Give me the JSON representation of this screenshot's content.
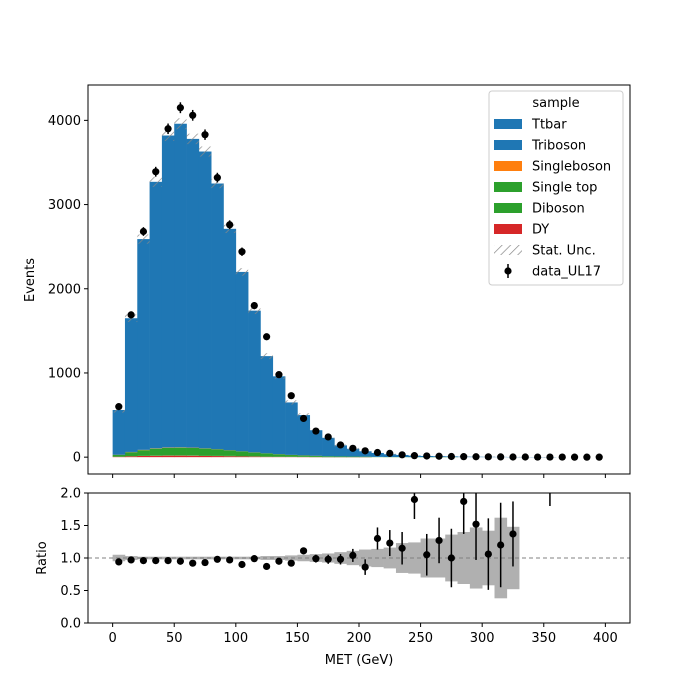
{
  "chart_data": [
    {
      "type": "bar",
      "subtype": "stacked-histogram-with-data-points",
      "xlabel": "",
      "ylabel": "Events",
      "xlim": [
        -20,
        420
      ],
      "ylim": [
        -200,
        4420
      ],
      "bin_edges": [
        0,
        10,
        20,
        30,
        40,
        50,
        60,
        70,
        80,
        90,
        100,
        110,
        120,
        130,
        140,
        150,
        160,
        170,
        180,
        190,
        200,
        210,
        220,
        230,
        240,
        250,
        260,
        270,
        280,
        290,
        300,
        310,
        320,
        330,
        340,
        350,
        360,
        370,
        380,
        390,
        400
      ],
      "x_ticks": [
        0,
        50,
        100,
        150,
        200,
        250,
        300,
        350,
        400
      ],
      "y_ticks": [
        0,
        1000,
        2000,
        3000,
        4000
      ],
      "y_tick_labels": [
        "0",
        "1000",
        "2000",
        "3000",
        "4000"
      ],
      "legend": {
        "title": "sample",
        "placement": "upper-right",
        "entries": [
          {
            "label": "Ttbar",
            "kind": "patch",
            "color": "#1f77b4"
          },
          {
            "label": "Triboson",
            "kind": "patch",
            "color": "#1f77b4"
          },
          {
            "label": "Singleboson",
            "kind": "patch",
            "color": "#ff7f0e"
          },
          {
            "label": "Single top",
            "kind": "patch",
            "color": "#2ca02c"
          },
          {
            "label": "Diboson",
            "kind": "patch",
            "color": "#2ca02c"
          },
          {
            "label": "DY",
            "kind": "patch",
            "color": "#d62728"
          },
          {
            "label": "Stat. Unc.",
            "kind": "hatch",
            "color": "#888888"
          },
          {
            "label": "data_UL17",
            "kind": "errorbar",
            "color": "#000000"
          }
        ]
      },
      "series": [
        {
          "name": "DY",
          "color": "#d62728",
          "values": [
            5,
            10,
            14,
            16,
            18,
            18,
            17,
            15,
            13,
            11,
            9,
            7,
            5,
            4,
            3,
            2,
            2,
            1,
            1,
            1,
            1,
            0,
            0,
            0,
            0,
            0,
            0,
            0,
            0,
            0,
            0,
            0,
            0,
            0,
            0,
            0,
            0,
            0,
            0,
            0
          ]
        },
        {
          "name": "Diboson",
          "color": "#2ca02c",
          "values": [
            2,
            3,
            4,
            5,
            5,
            5,
            5,
            5,
            5,
            4,
            4,
            3,
            3,
            2,
            2,
            2,
            1,
            1,
            1,
            1,
            1,
            0,
            0,
            0,
            0,
            0,
            0,
            0,
            0,
            0,
            0,
            0,
            0,
            0,
            0,
            0,
            0,
            0,
            0,
            0
          ]
        },
        {
          "name": "Single top",
          "color": "#2ca02c",
          "values": [
            20,
            45,
            65,
            80,
            88,
            90,
            88,
            82,
            75,
            65,
            55,
            45,
            36,
            28,
            21,
            16,
            12,
            9,
            7,
            5,
            4,
            3,
            2,
            2,
            1,
            1,
            1,
            1,
            0,
            0,
            0,
            0,
            0,
            0,
            0,
            0,
            0,
            0,
            0,
            0
          ]
        },
        {
          "name": "Singleboson",
          "color": "#ff7f0e",
          "values": [
            2,
            3,
            4,
            4,
            4,
            4,
            4,
            3,
            3,
            3,
            2,
            2,
            2,
            1,
            1,
            1,
            1,
            0,
            0,
            0,
            0,
            0,
            0,
            0,
            0,
            0,
            0,
            0,
            0,
            0,
            0,
            0,
            0,
            0,
            0,
            0,
            0,
            0,
            0,
            0
          ]
        },
        {
          "name": "Triboson",
          "color": "#1f77b4",
          "values": [
            1,
            1,
            1,
            1,
            1,
            1,
            1,
            1,
            1,
            1,
            1,
            1,
            1,
            0,
            0,
            0,
            0,
            0,
            0,
            0,
            0,
            0,
            0,
            0,
            0,
            0,
            0,
            0,
            0,
            0,
            0,
            0,
            0,
            0,
            0,
            0,
            0,
            0,
            0,
            0
          ]
        },
        {
          "name": "Ttbar",
          "color": "#1f77b4",
          "values": [
            530,
            1588,
            2502,
            3164,
            3704,
            3842,
            3665,
            3524,
            3153,
            2628,
            2129,
            1682,
            1153,
            925,
            623,
            479,
            304,
            219,
            131,
            93,
            64,
            47,
            33,
            24,
            17,
            13,
            10,
            8,
            6,
            5,
            4,
            3,
            2,
            2,
            1,
            1,
            0,
            0,
            0,
            0
          ]
        }
      ],
      "mc_stat_unc": [
        30,
        45,
        55,
        60,
        65,
        65,
        62,
        60,
        55,
        50,
        45,
        40,
        35,
        30,
        26,
        22,
        18,
        15,
        12,
        10,
        8,
        7,
        6,
        5,
        4,
        4,
        3,
        3,
        3,
        2,
        2,
        2,
        2,
        2,
        1,
        1,
        1,
        1,
        1,
        1
      ],
      "data_name": "data_UL17",
      "data_x": [
        5,
        15,
        25,
        35,
        45,
        55,
        65,
        75,
        85,
        95,
        105,
        115,
        125,
        135,
        145,
        155,
        165,
        175,
        185,
        195,
        205,
        215,
        225,
        235,
        245,
        255,
        265,
        275,
        285,
        295,
        305,
        315,
        325,
        335,
        345,
        355,
        365,
        375,
        385,
        395
      ],
      "data_y": [
        600,
        1690,
        2680,
        3390,
        3900,
        4150,
        4060,
        3830,
        3320,
        2760,
        2440,
        1800,
        1430,
        980,
        730,
        460,
        310,
        240,
        145,
        105,
        75,
        55,
        45,
        28,
        18,
        14,
        11,
        8,
        6,
        5,
        4,
        3,
        2,
        2,
        1,
        1,
        1,
        0,
        0,
        0
      ]
    },
    {
      "type": "scatter",
      "subtype": "ratio-panel",
      "xlabel": "MET (GeV)",
      "ylabel": "Ratio",
      "xlim": [
        -20,
        420
      ],
      "ylim": [
        0,
        2
      ],
      "x_ticks": [
        0,
        50,
        100,
        150,
        200,
        250,
        300,
        350,
        400
      ],
      "x_tick_labels": [
        "0",
        "50",
        "100",
        "150",
        "200",
        "250",
        "300",
        "350",
        "400"
      ],
      "y_ticks": [
        0,
        0.5,
        1,
        1.5,
        2
      ],
      "y_tick_labels": [
        "0.0",
        "0.5",
        "1.0",
        "1.5",
        "2.0"
      ],
      "reference_line": 1.0,
      "ratio_x": [
        5,
        15,
        25,
        35,
        45,
        55,
        65,
        75,
        85,
        95,
        105,
        115,
        125,
        135,
        145,
        155,
        165,
        175,
        185,
        195,
        205,
        215,
        225,
        235,
        245,
        255,
        265,
        275,
        285,
        295,
        305,
        315,
        325
      ],
      "ratio_y": [
        0.94,
        0.97,
        0.96,
        0.96,
        0.96,
        0.95,
        0.92,
        0.93,
        0.98,
        0.97,
        0.9,
        0.99,
        0.87,
        0.95,
        0.92,
        1.11,
        0.99,
        0.98,
        0.98,
        1.04,
        0.86,
        1.3,
        1.23,
        1.15,
        1.9,
        1.05,
        1.27,
        1.0,
        1.87,
        1.52,
        1.06,
        1.2,
        1.37
      ],
      "ratio_err": [
        0.05,
        0.03,
        0.02,
        0.02,
        0.02,
        0.02,
        0.02,
        0.02,
        0.02,
        0.02,
        0.02,
        0.02,
        0.03,
        0.03,
        0.04,
        0.05,
        0.06,
        0.07,
        0.08,
        0.1,
        0.12,
        0.17,
        0.2,
        0.25,
        0.3,
        0.32,
        0.35,
        0.45,
        0.5,
        0.55,
        0.55,
        0.65,
        0.5
      ],
      "band_half_width": [
        0.05,
        0.03,
        0.02,
        0.02,
        0.02,
        0.02,
        0.02,
        0.02,
        0.02,
        0.02,
        0.02,
        0.02,
        0.03,
        0.03,
        0.04,
        0.05,
        0.06,
        0.07,
        0.09,
        0.11,
        0.13,
        0.14,
        0.16,
        0.23,
        0.24,
        0.3,
        0.3,
        0.36,
        0.4,
        0.47,
        0.42,
        0.62,
        0.48
      ],
      "extra_marks": [
        {
          "x": 355,
          "y_low": 1.8,
          "y_high": 2.0
        }
      ]
    }
  ]
}
